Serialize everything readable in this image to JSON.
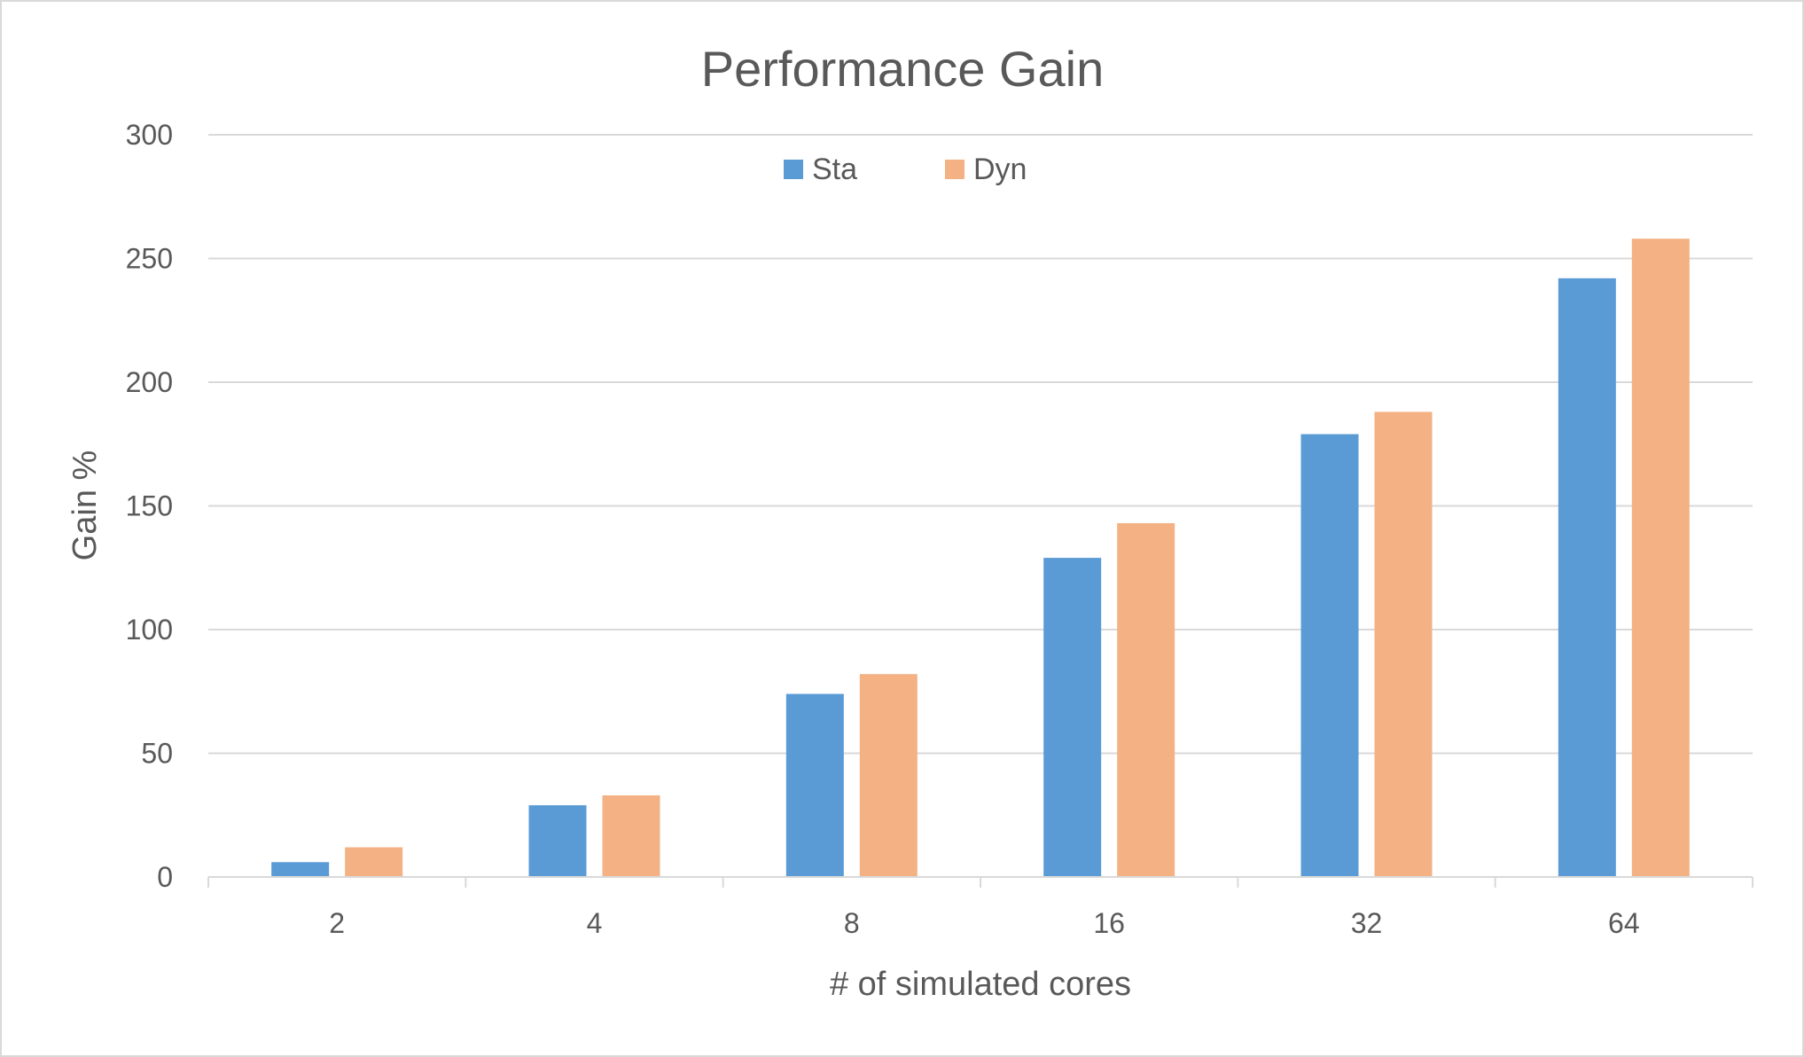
{
  "chart_data": {
    "type": "bar",
    "title": "Performance Gain",
    "xlabel": "# of simulated cores",
    "ylabel": "Gain %",
    "categories": [
      "2",
      "4",
      "8",
      "16",
      "32",
      "64"
    ],
    "series": [
      {
        "name": "Sta",
        "color": "#5b9bd5",
        "values": [
          6,
          29,
          74,
          129,
          179,
          242
        ]
      },
      {
        "name": "Dyn",
        "color": "#f4b183",
        "values": [
          12,
          33,
          82,
          143,
          188,
          258
        ]
      }
    ],
    "ylim": [
      0,
      300
    ],
    "yticks": [
      0,
      50,
      100,
      150,
      200,
      250,
      300
    ],
    "grid": true,
    "legend": "top-center"
  }
}
